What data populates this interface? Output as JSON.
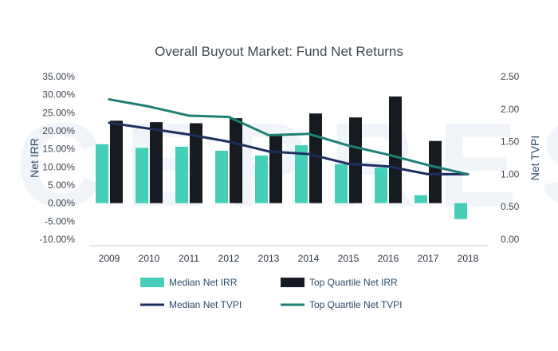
{
  "chart_data": {
    "type": "bar",
    "title": "Overall Buyout Market: Fund Net Returns",
    "categories": [
      "2009",
      "2010",
      "2011",
      "2012",
      "2013",
      "2014",
      "2015",
      "2016",
      "2017",
      "2018"
    ],
    "left_axis": {
      "label": "Net IRR",
      "ylim": [
        -0.1,
        0.35
      ],
      "ticks": [
        0.35,
        0.3,
        0.25,
        0.2,
        0.15,
        0.1,
        0.05,
        0.0,
        -0.05,
        -0.1
      ],
      "tick_labels": [
        "35.00%",
        "30.00%",
        "25.00%",
        "20.00%",
        "15.00%",
        "10.00%",
        "5.00%",
        "0.00%",
        "-5.00%",
        "-10.00%"
      ]
    },
    "right_axis": {
      "label": "Net TVPI",
      "ylim": [
        0.0,
        2.5
      ],
      "ticks": [
        2.5,
        2.0,
        1.5,
        1.0,
        0.5,
        0.0
      ],
      "tick_labels": [
        "2.50",
        "2.00",
        "1.50",
        "1.00",
        "0.50",
        "0.00"
      ]
    },
    "series": [
      {
        "name": "Median Net IRR",
        "kind": "bar",
        "axis": "left",
        "color": "#45cfb8",
        "values": [
          0.163,
          0.153,
          0.156,
          0.145,
          0.132,
          0.16,
          0.108,
          0.098,
          0.022,
          -0.044
        ]
      },
      {
        "name": "Top Quartile Net IRR",
        "kind": "bar",
        "axis": "left",
        "color": "#161b21",
        "values": [
          0.228,
          0.224,
          0.221,
          0.235,
          0.188,
          0.248,
          0.237,
          0.295,
          0.172,
          0.0
        ]
      },
      {
        "name": "Median Net TVPI",
        "kind": "line",
        "axis": "right",
        "color": "#1d2f5e",
        "values": [
          1.79,
          1.7,
          1.61,
          1.5,
          1.35,
          1.31,
          1.16,
          1.12,
          1.0,
          1.0
        ]
      },
      {
        "name": "Top Quartile Net TVPI",
        "kind": "line",
        "axis": "right",
        "color": "#1e7f74",
        "values": [
          2.15,
          2.04,
          1.9,
          1.88,
          1.6,
          1.62,
          1.44,
          1.3,
          1.14,
          1.0
        ]
      }
    ],
    "legend": [
      {
        "label": "Median Net IRR",
        "swatch": "bar",
        "color": "#45cfb8"
      },
      {
        "label": "Top Quartile Net IRR",
        "swatch": "bar",
        "color": "#161b21"
      },
      {
        "label": "Median Net TVPI",
        "swatch": "line",
        "color": "#1d2f5e"
      },
      {
        "label": "Top Quartile Net TVPI",
        "swatch": "line",
        "color": "#1e7f74"
      }
    ],
    "legend_position": "bottom",
    "grid": false
  },
  "watermark_text": "CEPRES"
}
